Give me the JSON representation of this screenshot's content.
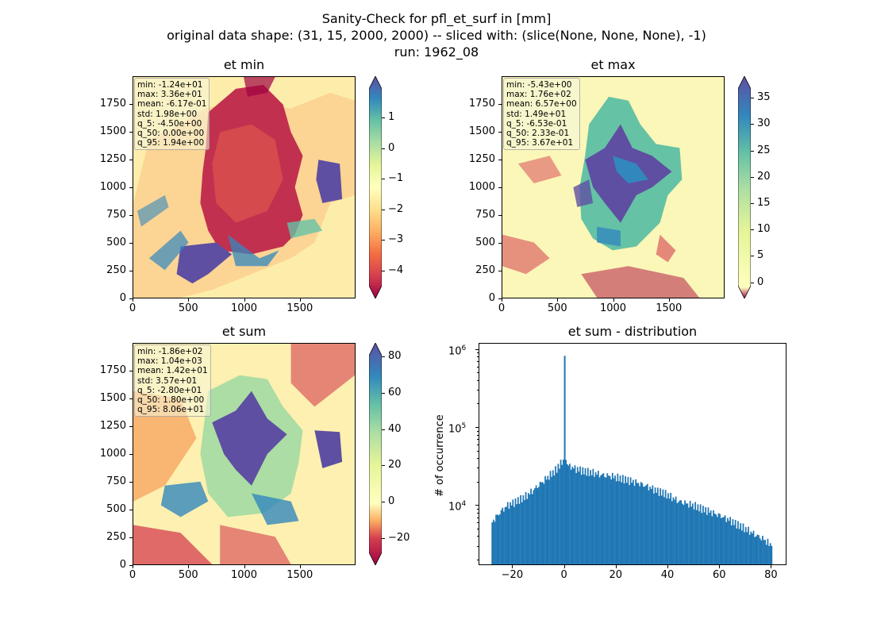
{
  "figure": {
    "suptitle_line1": "Sanity-Check for pfl_et_surf in [mm]",
    "suptitle_line2": "original data shape: (31, 15, 2000, 2000) -- sliced with: (slice(None, None, None), -1)",
    "suptitle_line3": "run: 1962_08"
  },
  "panels": {
    "et_min": {
      "title": "et min",
      "stats": "min: -1.24e+01\nmax: 3.36e+01\nmean: -6.17e-01\nstd: 1.98e+00\nq_5: -4.50e+00\nq_50: 0.00e+00\nq_95: 1.94e+00",
      "x_ticks": [
        "0",
        "500",
        "1000",
        "1500"
      ],
      "y_ticks": [
        "0",
        "250",
        "500",
        "750",
        "1000",
        "1250",
        "1500",
        "1750"
      ],
      "colorbar_ticks": [
        "1",
        "0",
        "−1",
        "−2",
        "−3",
        "−4"
      ]
    },
    "et_max": {
      "title": "et max",
      "stats": "min: -5.43e+00\nmax: 1.76e+02\nmean: 6.57e+00\nstd: 1.49e+01\nq_5: -6.53e-01\nq_50: 2.33e-01\nq_95: 3.67e+01",
      "x_ticks": [
        "0",
        "500",
        "1000",
        "1500"
      ],
      "y_ticks": [
        "0",
        "250",
        "500",
        "750",
        "1000",
        "1250",
        "1500",
        "1750"
      ],
      "colorbar_ticks": [
        "35",
        "30",
        "25",
        "20",
        "15",
        "10",
        "5",
        "0"
      ]
    },
    "et_sum": {
      "title": "et sum",
      "stats": "min: -1.86e+02\nmax: 1.04e+03\nmean: 1.42e+01\nstd: 3.57e+01\nq_5: -2.80e+01\nq_50: 1.80e+00\nq_95: 8.06e+01",
      "x_ticks": [
        "0",
        "500",
        "1000",
        "1500"
      ],
      "y_ticks": [
        "0",
        "250",
        "500",
        "750",
        "1000",
        "1250",
        "1500",
        "1750"
      ],
      "colorbar_ticks": [
        "80",
        "60",
        "40",
        "20",
        "0",
        "−20"
      ]
    },
    "et_sum_dist": {
      "title": "et sum - distribution",
      "ylabel": "# of occurrence",
      "x_ticks": [
        "−20",
        "0",
        "20",
        "40",
        "60",
        "80"
      ],
      "y_ticks_base": [
        "10",
        "10",
        "10"
      ],
      "y_ticks_exp": [
        "6",
        "5",
        "4"
      ]
    }
  },
  "colors": {
    "histogram_bar": "#1f77b4",
    "cmap_spectral": [
      "#9e0142",
      "#d53e4f",
      "#f46d43",
      "#fdae61",
      "#fee08b",
      "#ffffbf",
      "#e6f598",
      "#abdda4",
      "#66c2a5",
      "#3288bd",
      "#5e4fa2"
    ]
  },
  "chart_data": [
    {
      "type": "heatmap",
      "title": "et min",
      "xlim": [
        0,
        2000
      ],
      "ylim": [
        0,
        2000
      ],
      "colorbar_range": [
        -4.5,
        1.94
      ],
      "colormap": "Spectral"
    },
    {
      "type": "heatmap",
      "title": "et max",
      "xlim": [
        0,
        2000
      ],
      "ylim": [
        0,
        2000
      ],
      "colorbar_range": [
        -0.65,
        36.7
      ],
      "colormap": "Spectral"
    },
    {
      "type": "heatmap",
      "title": "et sum",
      "xlim": [
        0,
        2000
      ],
      "ylim": [
        0,
        2000
      ],
      "colorbar_range": [
        -28,
        80.6
      ],
      "colormap": "Spectral"
    },
    {
      "type": "bar",
      "title": "et sum - distribution",
      "ylabel": "# of occurrence",
      "yscale": "log",
      "xlim": [
        -33,
        86
      ],
      "ylim": [
        1700,
        1200000
      ],
      "bins": [
        {
          "x": -28,
          "y": 6000
        },
        {
          "x": -26,
          "y": 7200
        },
        {
          "x": -24,
          "y": 8500
        },
        {
          "x": -22,
          "y": 9800
        },
        {
          "x": -20,
          "y": 10500
        },
        {
          "x": -18,
          "y": 11500
        },
        {
          "x": -16,
          "y": 12500
        },
        {
          "x": -14,
          "y": 14000
        },
        {
          "x": -12,
          "y": 16000
        },
        {
          "x": -10,
          "y": 18500
        },
        {
          "x": -8,
          "y": 21000
        },
        {
          "x": -6,
          "y": 24000
        },
        {
          "x": -4,
          "y": 27000
        },
        {
          "x": -2,
          "y": 32000
        },
        {
          "x": -0.5,
          "y": 40000
        },
        {
          "x": 0,
          "y": 820000
        },
        {
          "x": 0.5,
          "y": 36000
        },
        {
          "x": 2,
          "y": 31000
        },
        {
          "x": 4,
          "y": 29000
        },
        {
          "x": 6,
          "y": 28000
        },
        {
          "x": 8,
          "y": 27000
        },
        {
          "x": 10,
          "y": 26500
        },
        {
          "x": 12,
          "y": 26000
        },
        {
          "x": 14,
          "y": 25000
        },
        {
          "x": 16,
          "y": 24500
        },
        {
          "x": 18,
          "y": 24000
        },
        {
          "x": 20,
          "y": 23000
        },
        {
          "x": 22,
          "y": 22000
        },
        {
          "x": 24,
          "y": 21000
        },
        {
          "x": 26,
          "y": 20000
        },
        {
          "x": 28,
          "y": 19000
        },
        {
          "x": 30,
          "y": 18000
        },
        {
          "x": 32,
          "y": 17000
        },
        {
          "x": 34,
          "y": 16000
        },
        {
          "x": 36,
          "y": 15000
        },
        {
          "x": 38,
          "y": 14500
        },
        {
          "x": 40,
          "y": 13500
        },
        {
          "x": 42,
          "y": 12500
        },
        {
          "x": 44,
          "y": 11500
        },
        {
          "x": 46,
          "y": 11000
        },
        {
          "x": 48,
          "y": 10500
        },
        {
          "x": 50,
          "y": 10000
        },
        {
          "x": 52,
          "y": 9300
        },
        {
          "x": 54,
          "y": 8700
        },
        {
          "x": 56,
          "y": 8200
        },
        {
          "x": 58,
          "y": 7600
        },
        {
          "x": 60,
          "y": 7200
        },
        {
          "x": 62,
          "y": 6700
        },
        {
          "x": 64,
          "y": 6300
        },
        {
          "x": 66,
          "y": 5800
        },
        {
          "x": 68,
          "y": 5400
        },
        {
          "x": 70,
          "y": 5000
        },
        {
          "x": 72,
          "y": 4600
        },
        {
          "x": 74,
          "y": 4200
        },
        {
          "x": 76,
          "y": 3900
        },
        {
          "x": 78,
          "y": 3500
        },
        {
          "x": 80,
          "y": 3000
        }
      ]
    }
  ]
}
